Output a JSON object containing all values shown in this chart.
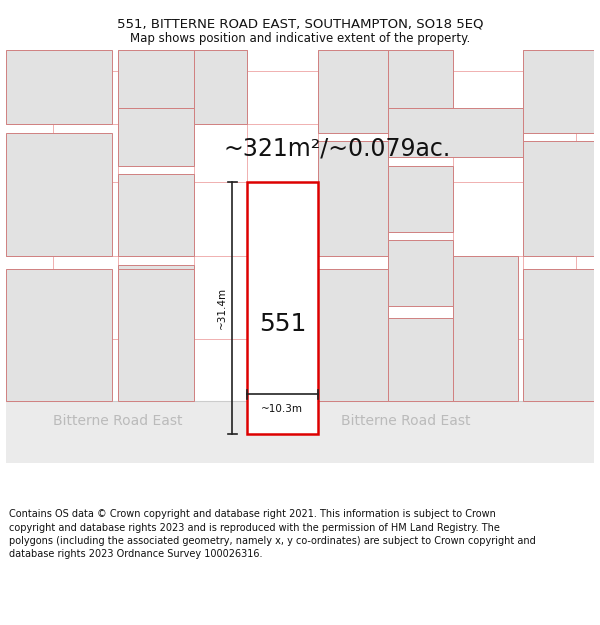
{
  "title_line1": "551, BITTERNE ROAD EAST, SOUTHAMPTON, SO18 5EQ",
  "title_line2": "Map shows position and indicative extent of the property.",
  "area_text": "~321m²/~0.079ac.",
  "plot_number": "551",
  "dim_height": "~31.4m",
  "dim_width": "~10.3m",
  "road_name": "Bitterne Road East",
  "footer_text": "Contains OS data © Crown copyright and database right 2021. This information is subject to Crown copyright and database rights 2023 and is reproduced with the permission of HM Land Registry. The polygons (including the associated geometry, namely x, y co-ordinates) are subject to Crown copyright and database rights 2023 Ordnance Survey 100026316.",
  "bg_color": "#ffffff",
  "map_bg": "#f7f2f2",
  "road_bg": "#ebebeb",
  "plot_fill": "#ffffff",
  "plot_edge": "#dd0000",
  "neighbor_fill": "#e2e2e2",
  "neighbor_edge": "#d08080",
  "grid_line_color": "#f0b0b0",
  "road_border_color": "#cccccc",
  "road_text_color": "#bbbbbb",
  "text_color": "#111111",
  "dim_line_color": "#222222",
  "title_fontsize": 9.5,
  "subtitle_fontsize": 8.5,
  "area_fontsize": 17,
  "plot_num_fontsize": 18,
  "road_fontsize": 10,
  "footer_fontsize": 7.0,
  "dim_fontsize": 7.5
}
